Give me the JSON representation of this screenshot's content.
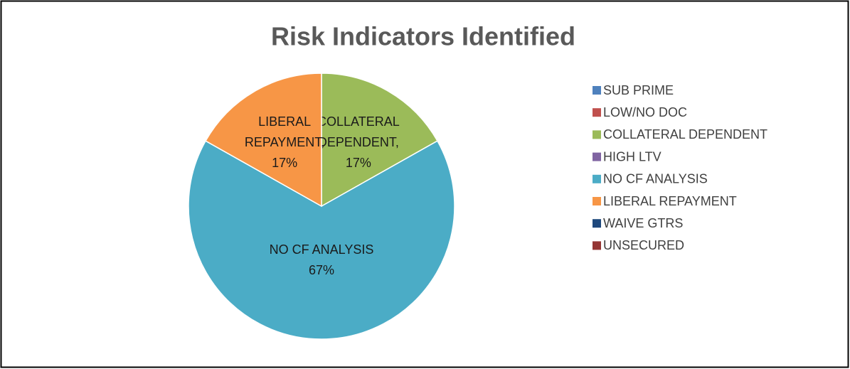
{
  "chart_data": {
    "type": "pie",
    "title": "Risk Indicators Identified",
    "categories": [
      "SUB PRIME",
      "LOW/NO DOC",
      "COLLATERAL DEPENDENT",
      "HIGH LTV",
      "NO CF ANALYSIS",
      "LIBERAL REPAYMENT",
      "WAIVE GTRS",
      "UNSECURED"
    ],
    "values": [
      0,
      0,
      17,
      0,
      67,
      17,
      0,
      0
    ],
    "value_labels": [
      null,
      null,
      [
        "COLLATERAL",
        "DEPENDENT,",
        "17%"
      ],
      null,
      [
        "NO CF ANALYSIS",
        "67%"
      ],
      [
        "LIBERAL",
        "REPAYMENT,",
        "17%"
      ],
      null,
      null
    ],
    "colors": [
      "#4f81bd",
      "#c0504d",
      "#9bbb59",
      "#8064a2",
      "#4bacc6",
      "#f79646",
      "#1f497d",
      "#943634"
    ],
    "legend": "right"
  }
}
